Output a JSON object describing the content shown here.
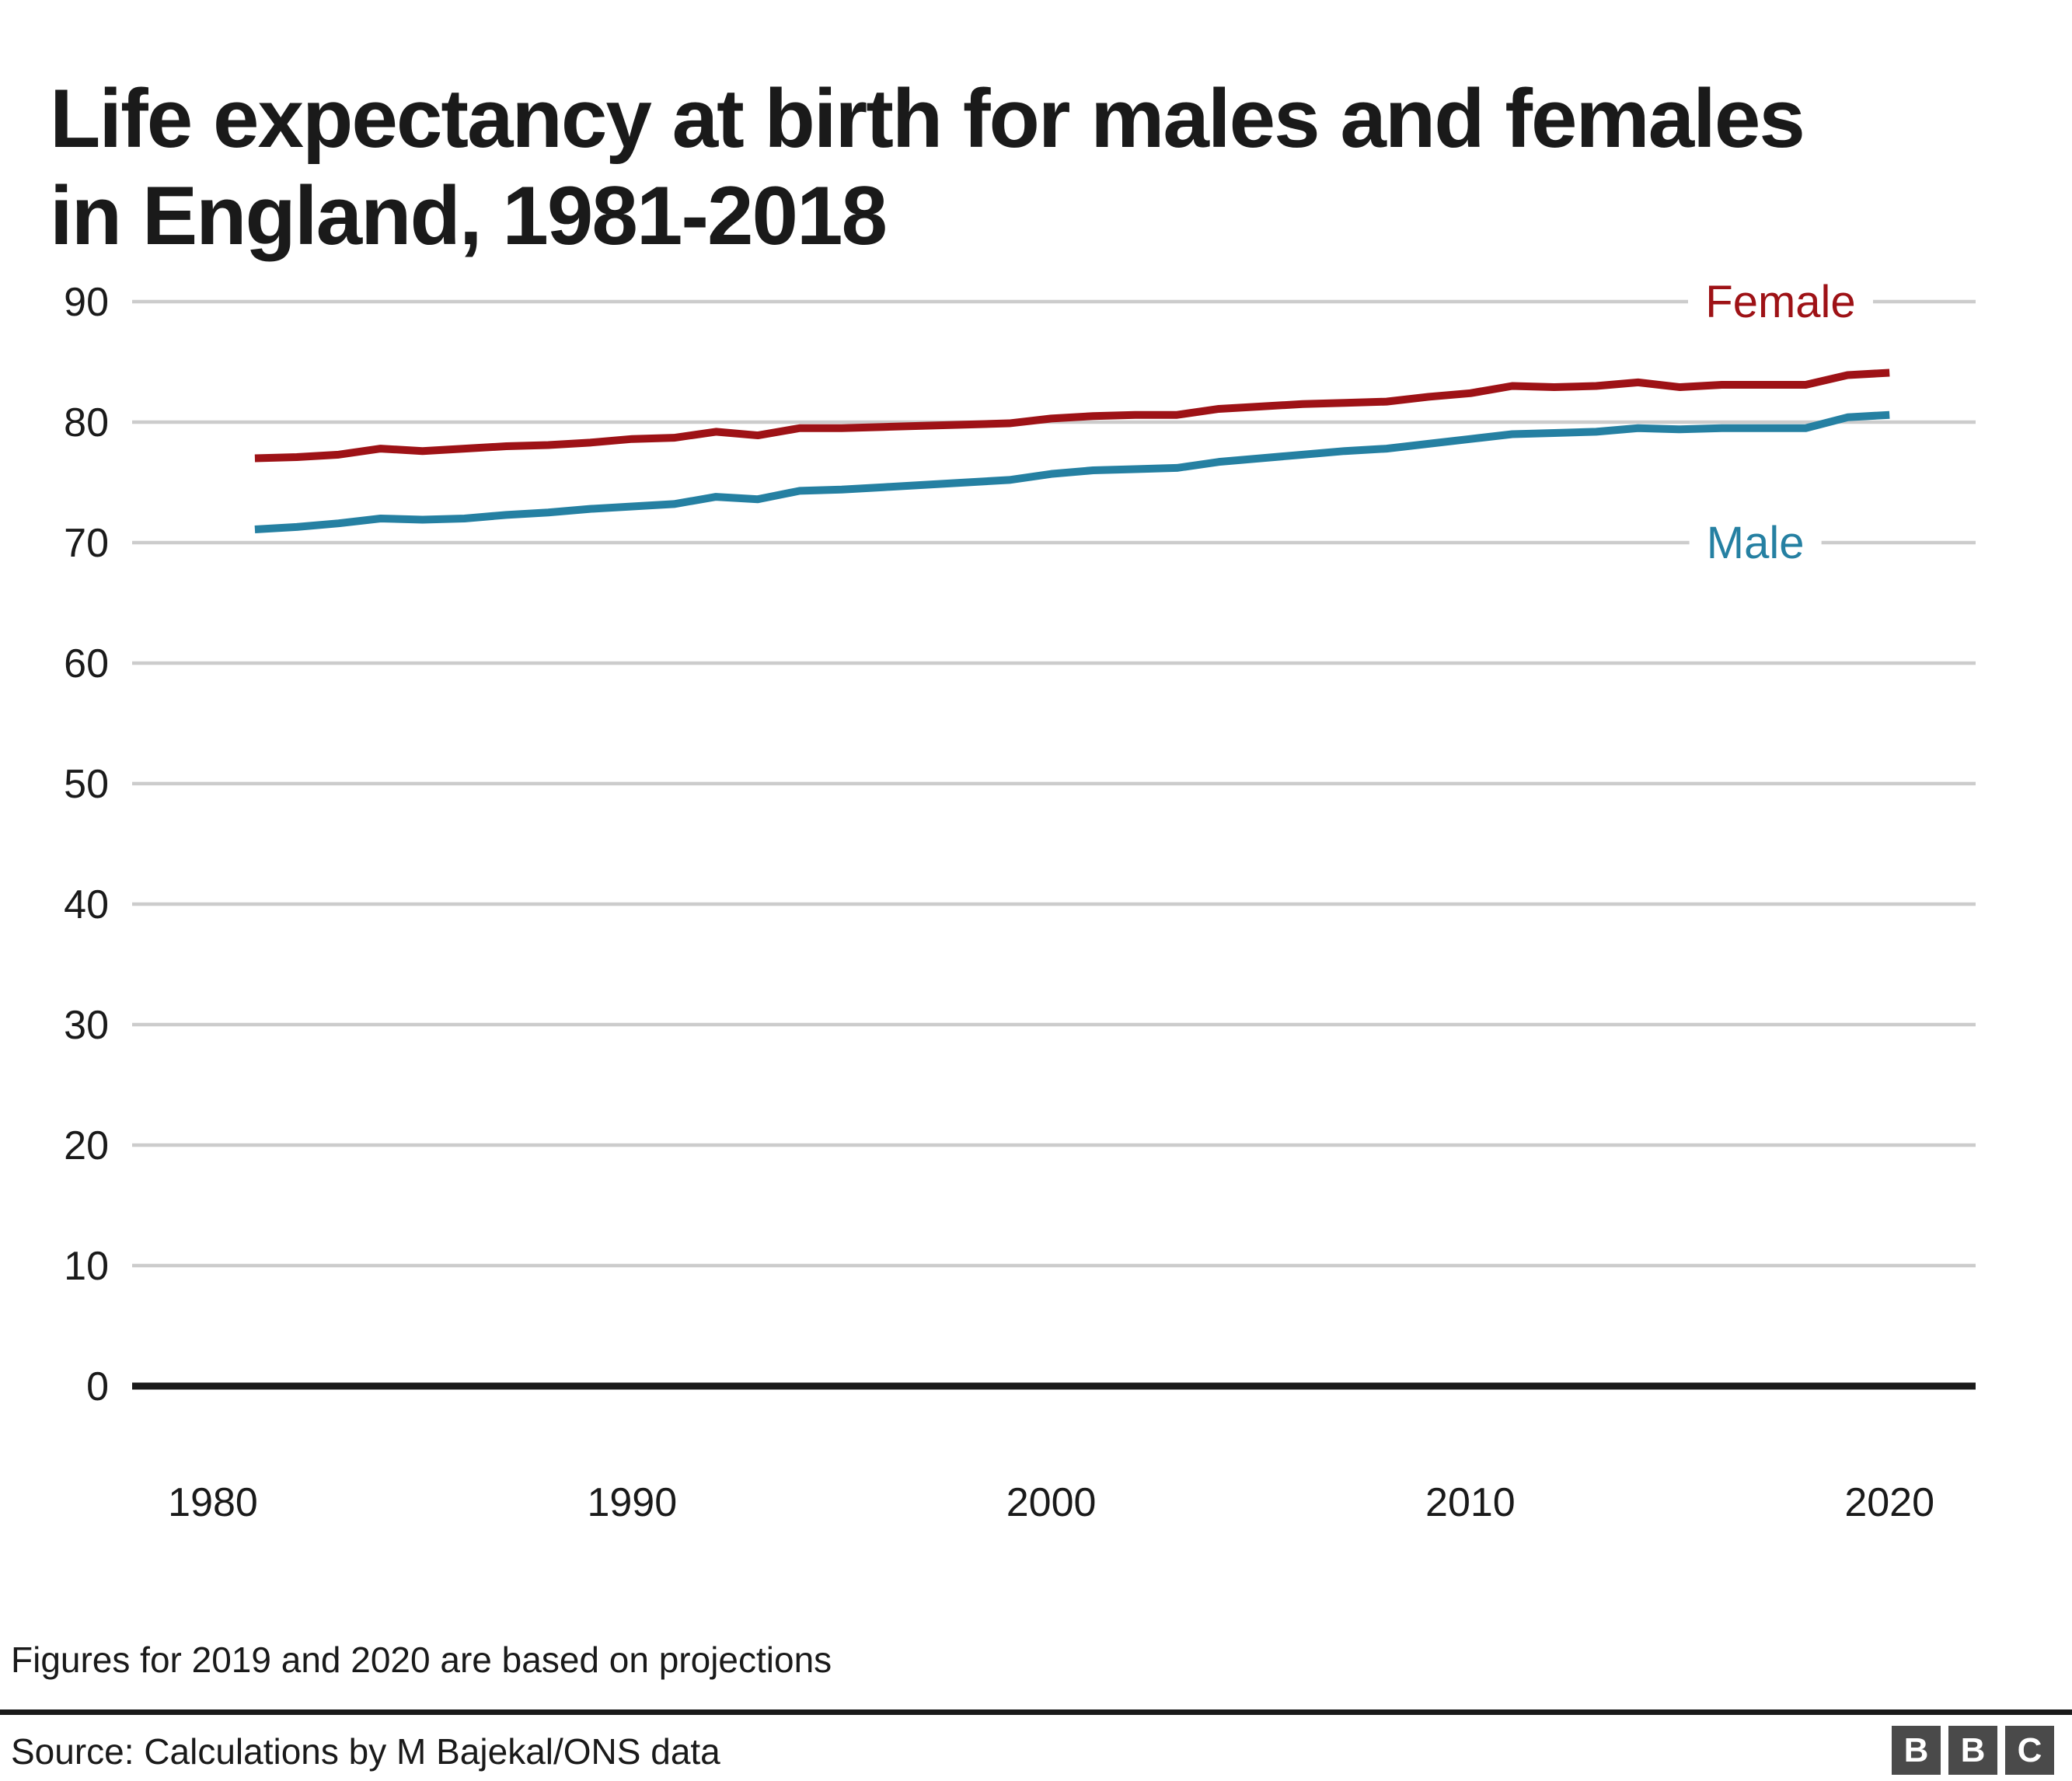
{
  "title": {
    "line1": "Life expectancy at birth for males and females",
    "line2": "in England, 1981-2018"
  },
  "chart_data": {
    "type": "line",
    "title": "Life expectancy at birth for males and females in England, 1981-2018",
    "xlabel": "",
    "ylabel": "",
    "ylim": [
      0,
      90
    ],
    "grid": true,
    "grid_color": "#cccccc",
    "axis_color": "#1a1a1a",
    "tick_label_color": "#1a1a1a",
    "yticks": [
      90,
      80,
      70,
      60,
      50,
      40,
      30,
      20,
      10,
      0
    ],
    "xticks": [
      1980,
      1990,
      2000,
      2010,
      2020
    ],
    "years": [
      1981,
      1982,
      1983,
      1984,
      1985,
      1986,
      1987,
      1988,
      1989,
      1990,
      1991,
      1992,
      1993,
      1994,
      1995,
      1996,
      1997,
      1998,
      1999,
      2000,
      2001,
      2002,
      2003,
      2004,
      2005,
      2006,
      2007,
      2008,
      2009,
      2010,
      2011,
      2012,
      2013,
      2014,
      2015,
      2016,
      2017,
      2018,
      2019,
      2020
    ],
    "series": [
      {
        "name": "Female",
        "color": "#9e1216",
        "label_anchor": {
          "year": 2017.4,
          "value": 90
        },
        "values": [
          77.0,
          77.1,
          77.3,
          77.8,
          77.6,
          77.8,
          78.0,
          78.1,
          78.3,
          78.6,
          78.7,
          79.2,
          78.9,
          79.5,
          79.5,
          79.6,
          79.7,
          79.8,
          79.9,
          80.3,
          80.5,
          80.6,
          80.6,
          81.1,
          81.3,
          81.5,
          81.6,
          81.7,
          82.1,
          82.4,
          83.0,
          82.9,
          83.0,
          83.3,
          82.9,
          83.1,
          83.1,
          83.1,
          83.9,
          84.1
        ]
      },
      {
        "name": "Male",
        "color": "#2580a2",
        "label_anchor": {
          "year": 2016.8,
          "value": 70
        },
        "values": [
          71.1,
          71.3,
          71.6,
          72.0,
          71.9,
          72.0,
          72.3,
          72.5,
          72.8,
          73.0,
          73.2,
          73.8,
          73.6,
          74.3,
          74.4,
          74.6,
          74.8,
          75.0,
          75.2,
          75.7,
          76.0,
          76.1,
          76.2,
          76.7,
          77.0,
          77.3,
          77.6,
          77.8,
          78.2,
          78.6,
          79.0,
          79.1,
          79.2,
          79.5,
          79.4,
          79.5,
          79.5,
          79.5,
          80.4,
          80.6
        ]
      }
    ],
    "legend_position": "inline-right",
    "annotation": "Figures for 2019 and 2020 are based on projections"
  },
  "footnote": "Figures for 2019 and 2020 are based on projections",
  "source": "Source: Calculations by M Bajekal/ONS data",
  "logo": {
    "letters": [
      "B",
      "B",
      "C"
    ]
  }
}
